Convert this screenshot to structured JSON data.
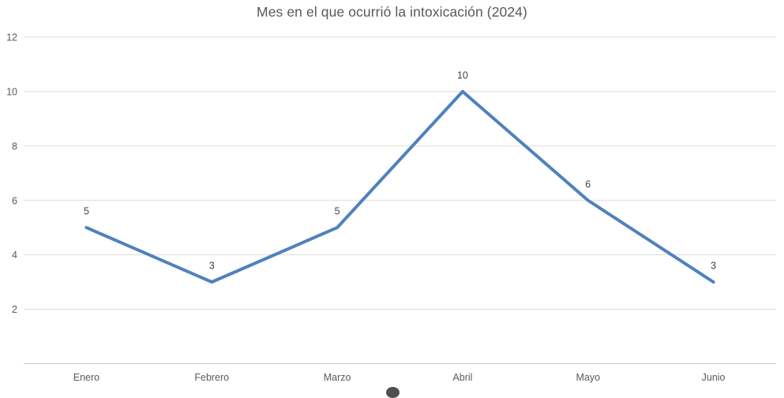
{
  "title": {
    "text": "Mes en el que ocurrió la intoxicación (2024)",
    "color": "#595959"
  },
  "chart_data": {
    "type": "line",
    "title": "Mes en el que ocurrió la intoxicación (2024)",
    "categories": [
      "Enero",
      "Febrero",
      "Marzo",
      "Abril",
      "Mayo",
      "Junio"
    ],
    "values": [
      5,
      3,
      5,
      10,
      6,
      3
    ],
    "xlabel": "",
    "ylabel": "",
    "ylim": [
      0,
      12
    ],
    "yticks": [
      2,
      4,
      6,
      8,
      10,
      12
    ],
    "grid": true,
    "legend": "none",
    "data_labels": true,
    "colors": {
      "line": "#4f81bd",
      "gridline": "#dcdcdc",
      "axis_line": "#c9c9c9",
      "tick_label": "#595959",
      "data_label": "#404040",
      "title": "#595959"
    }
  },
  "bottom_overlay": {
    "description": "clipped dark circle at bottom edge",
    "color": "#4f4f4f"
  }
}
